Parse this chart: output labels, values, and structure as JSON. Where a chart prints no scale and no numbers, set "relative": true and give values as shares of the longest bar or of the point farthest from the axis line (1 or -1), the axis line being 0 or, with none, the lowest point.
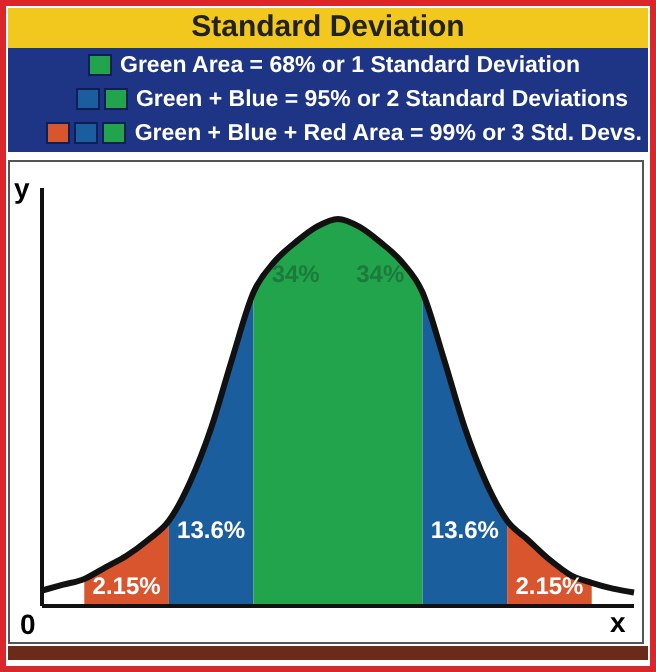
{
  "chart_data": {
    "type": "area",
    "title": "Standard Deviation",
    "xlabel": "x",
    "ylabel": "y",
    "relative": true,
    "marker": "none",
    "annotations": [
      "Green Area = 68% or 1 Standard Deviation",
      "Green + Blue = 95% or 2 Standard Deviations",
      "Green + Blue + Red Area = 99% or 3 Std. Devs.",
      "0",
      "2.15%",
      "13.6%",
      "34%",
      "34%",
      "13.6%",
      "2.15%"
    ],
    "categories": [
      null,
      null,
      null,
      null,
      null,
      null,
      null,
      null,
      null,
      null,
      null,
      null,
      null,
      null,
      null,
      null,
      null,
      null,
      null,
      null,
      null,
      null,
      null,
      null,
      null,
      null,
      null,
      null,
      null
    ],
    "series": [
      {
        "type": "line",
        "color": "#111111",
        "values": [
          0.04,
          0.055,
          0.07,
          0.1,
          0.13,
          0.17,
          0.22,
          0.32,
          0.46,
          0.64,
          0.81,
          0.89,
          0.94,
          0.98,
          1,
          0.98,
          0.94,
          0.89,
          0.81,
          0.64,
          0.46,
          0.32,
          0.22,
          0.17,
          0.12,
          0.08,
          0.06,
          0.045,
          0.035
        ]
      },
      {
        "color": "#d9552e",
        "values": [
          null,
          null,
          0.07,
          0.1,
          0.13,
          0.17,
          0.22,
          null,
          null,
          null,
          null,
          null,
          null,
          null,
          null,
          null,
          null,
          null,
          null,
          null,
          null,
          null,
          null,
          null,
          null,
          null,
          null,
          null,
          null
        ]
      },
      {
        "color": "#1b5e9e",
        "values": [
          null,
          null,
          null,
          null,
          null,
          null,
          0.22,
          0.32,
          0.46,
          0.64,
          0.81,
          null,
          null,
          null,
          null,
          null,
          null,
          null,
          null,
          null,
          null,
          null,
          null,
          null,
          null,
          null,
          null,
          null,
          null
        ]
      },
      {
        "color": "#22a44c",
        "values": [
          null,
          null,
          null,
          null,
          null,
          null,
          null,
          null,
          null,
          null,
          0.81,
          0.89,
          0.94,
          0.98,
          1,
          null,
          null,
          null,
          null,
          null,
          null,
          null,
          null,
          null,
          null,
          null,
          null,
          null,
          null
        ]
      },
      {
        "color": "#22a44c",
        "values": [
          null,
          null,
          null,
          null,
          null,
          null,
          null,
          null,
          null,
          null,
          null,
          null,
          null,
          null,
          1,
          0.98,
          0.94,
          0.89,
          0.81,
          null,
          null,
          null,
          null,
          null,
          null,
          null,
          null,
          null,
          null
        ]
      },
      {
        "color": "#1b5e9e",
        "values": [
          null,
          null,
          null,
          null,
          null,
          null,
          null,
          null,
          null,
          null,
          null,
          null,
          null,
          null,
          null,
          null,
          null,
          null,
          0.81,
          0.64,
          0.46,
          0.32,
          0.22,
          null,
          null,
          null,
          null,
          null,
          null
        ]
      },
      {
        "color": "#d9552e",
        "values": [
          null,
          null,
          null,
          null,
          null,
          null,
          null,
          null,
          null,
          null,
          null,
          null,
          null,
          null,
          null,
          null,
          null,
          null,
          null,
          null,
          null,
          null,
          0.22,
          0.17,
          0.12,
          0.08,
          0.06,
          null,
          null
        ]
      }
    ]
  }
}
